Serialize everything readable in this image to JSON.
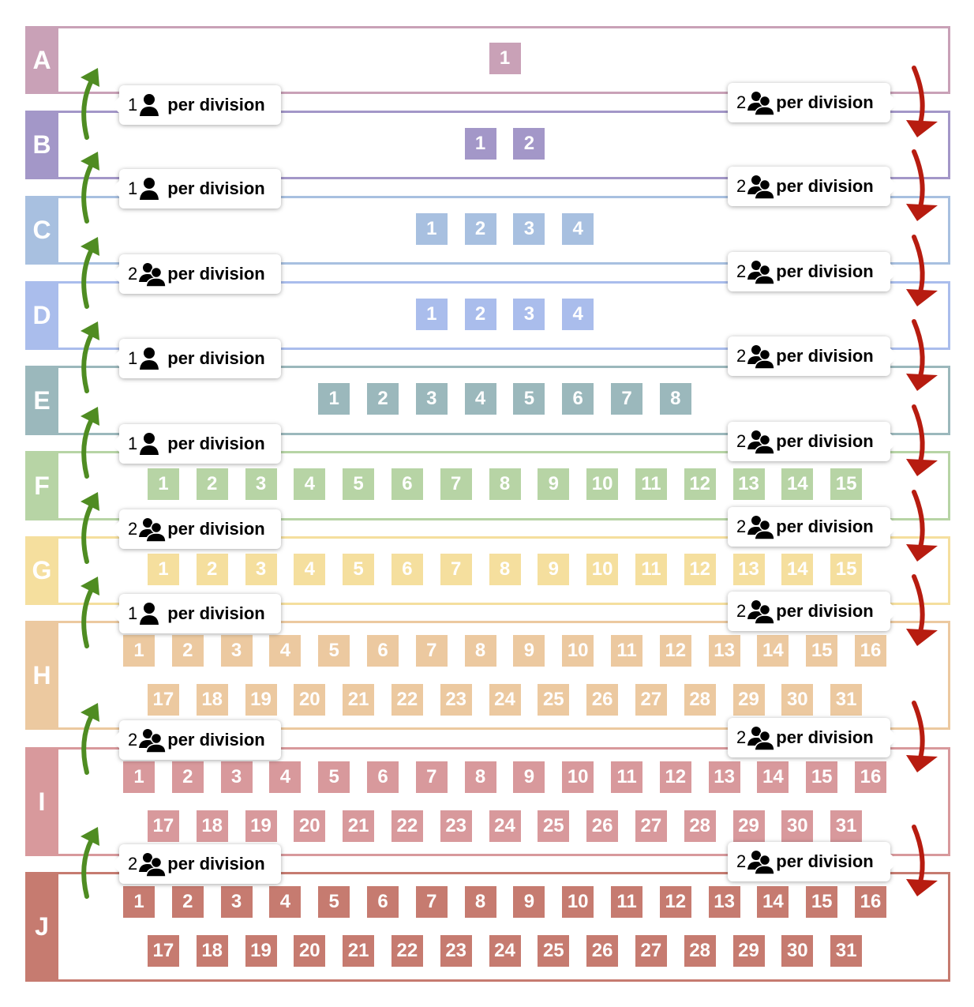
{
  "colors": {
    "A": "#c9a1b7",
    "B": "#a397c8",
    "C": "#a8c0e0",
    "D": "#aabdec",
    "E": "#9bb8bc",
    "F": "#b7d4a5",
    "G": "#f5df9e",
    "H": "#ecc9a0",
    "I": "#d8999c",
    "J": "#c67b70",
    "up_arrow": "#4f8c22",
    "down_arrow": "#b71c10"
  },
  "tiers": [
    {
      "label": "A",
      "rows": [
        [
          "1"
        ]
      ]
    },
    {
      "label": "B",
      "rows": [
        [
          "1",
          "2"
        ]
      ]
    },
    {
      "label": "C",
      "rows": [
        [
          "1",
          "2",
          "3",
          "4"
        ]
      ]
    },
    {
      "label": "D",
      "rows": [
        [
          "1",
          "2",
          "3",
          "4"
        ]
      ]
    },
    {
      "label": "E",
      "rows": [
        [
          "1",
          "2",
          "3",
          "4",
          "5",
          "6",
          "7",
          "8"
        ]
      ]
    },
    {
      "label": "F",
      "rows": [
        [
          "1",
          "2",
          "3",
          "4",
          "5",
          "6",
          "7",
          "8",
          "9",
          "10",
          "11",
          "12",
          "13",
          "14",
          "15"
        ]
      ]
    },
    {
      "label": "G",
      "rows": [
        [
          "1",
          "2",
          "3",
          "4",
          "5",
          "6",
          "7",
          "8",
          "9",
          "10",
          "11",
          "12",
          "13",
          "14",
          "15"
        ]
      ]
    },
    {
      "label": "H",
      "rows": [
        [
          "1",
          "2",
          "3",
          "4",
          "5",
          "6",
          "7",
          "8",
          "9",
          "10",
          "11",
          "12",
          "13",
          "14",
          "15",
          "16"
        ],
        [
          "17",
          "18",
          "19",
          "20",
          "21",
          "22",
          "23",
          "24",
          "25",
          "26",
          "27",
          "28",
          "29",
          "30",
          "31"
        ]
      ]
    },
    {
      "label": "I",
      "rows": [
        [
          "1",
          "2",
          "3",
          "4",
          "5",
          "6",
          "7",
          "8",
          "9",
          "10",
          "11",
          "12",
          "13",
          "14",
          "15",
          "16"
        ],
        [
          "17",
          "18",
          "19",
          "20",
          "21",
          "22",
          "23",
          "24",
          "25",
          "26",
          "27",
          "28",
          "29",
          "30",
          "31"
        ]
      ]
    },
    {
      "label": "J",
      "rows": [
        [
          "1",
          "2",
          "3",
          "4",
          "5",
          "6",
          "7",
          "8",
          "9",
          "10",
          "11",
          "12",
          "13",
          "14",
          "15",
          "16"
        ],
        [
          "17",
          "18",
          "19",
          "20",
          "21",
          "22",
          "23",
          "24",
          "25",
          "26",
          "27",
          "28",
          "29",
          "30",
          "31"
        ]
      ]
    }
  ],
  "transitions": [
    {
      "up_count": "1",
      "up_icon": "person-icon",
      "down_count": "2",
      "down_icon": "two-people-icon"
    },
    {
      "up_count": "1",
      "up_icon": "person-icon",
      "down_count": "2",
      "down_icon": "two-people-icon"
    },
    {
      "up_count": "2",
      "up_icon": "two-people-icon",
      "down_count": "2",
      "down_icon": "two-people-icon"
    },
    {
      "up_count": "1",
      "up_icon": "person-icon",
      "down_count": "2",
      "down_icon": "two-people-icon"
    },
    {
      "up_count": "1",
      "up_icon": "person-icon",
      "down_count": "2",
      "down_icon": "two-people-icon"
    },
    {
      "up_count": "2",
      "up_icon": "two-people-icon",
      "down_count": "2",
      "down_icon": "two-people-icon"
    },
    {
      "up_count": "1",
      "up_icon": "person-icon",
      "down_count": "2",
      "down_icon": "two-people-icon"
    },
    {
      "up_count": "2",
      "up_icon": "two-people-icon",
      "down_count": "2",
      "down_icon": "two-people-icon"
    },
    {
      "up_count": "2",
      "up_icon": "two-people-icon",
      "down_count": "2",
      "down_icon": "two-people-icon"
    }
  ],
  "per_division_text": "per division"
}
